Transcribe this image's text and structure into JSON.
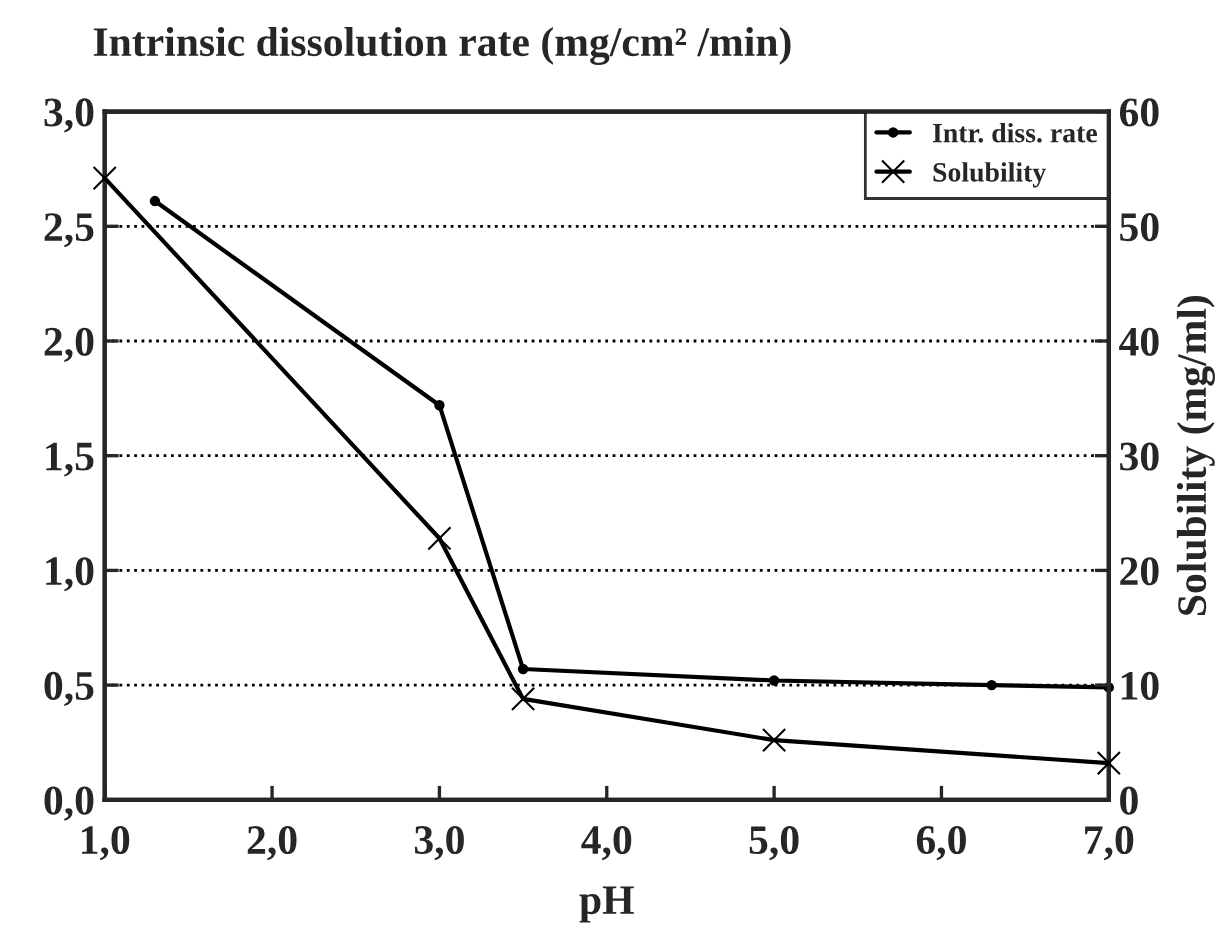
{
  "chart_data": {
    "type": "line",
    "title": "Intrinsic dissolution rate (mg/cm² /min)",
    "xlabel": "pH",
    "y2label": "Solubility (mg/ml)",
    "series": [
      {
        "name": "Intr. diss. rate",
        "color": "#000000",
        "marker": "circle",
        "x": [
          1.3,
          3.0,
          3.5,
          5.0,
          6.3,
          7.0
        ],
        "values": [
          2.61,
          1.72,
          0.57,
          0.52,
          0.5,
          0.49
        ]
      },
      {
        "name": "Solubility",
        "color": "#000000",
        "marker": "cross",
        "axis": "y2",
        "x": [
          1.0,
          3.0,
          3.5,
          5.0,
          7.0
        ],
        "values": [
          54.2,
          22.8,
          8.8,
          5.2,
          3.2
        ]
      }
    ],
    "xlim": [
      1,
      7
    ],
    "xticks": [
      {
        "value": 1,
        "label": "1,0"
      },
      {
        "value": 2,
        "label": "2,0"
      },
      {
        "value": 3,
        "label": "3,0"
      },
      {
        "value": 4,
        "label": "4,0"
      },
      {
        "value": 5,
        "label": "5,0"
      },
      {
        "value": 6,
        "label": "6,0"
      },
      {
        "value": 7,
        "label": "7,0"
      }
    ],
    "ylim": [
      0,
      3
    ],
    "yticks": [
      {
        "value": 0,
        "label": "0,0"
      },
      {
        "value": 0.5,
        "label": "0,5"
      },
      {
        "value": 1,
        "label": "1,0"
      },
      {
        "value": 1.5,
        "label": "1,5"
      },
      {
        "value": 2,
        "label": "2,0"
      },
      {
        "value": 2.5,
        "label": "2,5"
      },
      {
        "value": 3,
        "label": "3,0"
      }
    ],
    "y2lim": [
      0,
      60
    ],
    "y2ticks": [
      0,
      10,
      20,
      30,
      40,
      50,
      60
    ],
    "grid": "y",
    "legend": "top right",
    "line_style": "solid"
  }
}
